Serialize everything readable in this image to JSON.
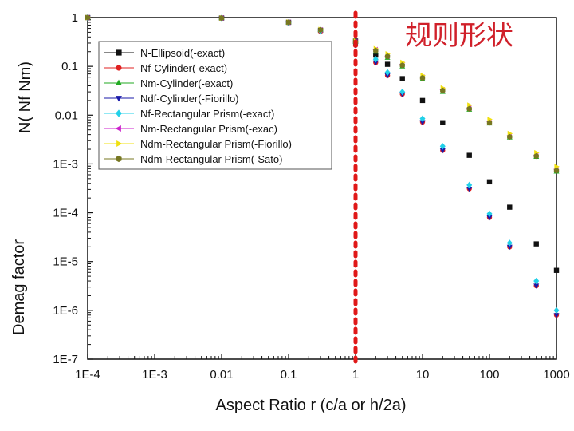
{
  "overlay_title": "规则形状",
  "chart_data": {
    "type": "scatter",
    "xscale": "log",
    "yscale": "log",
    "xlim": [
      0.0001,
      1000
    ],
    "ylim": [
      1e-07,
      1
    ],
    "x_tick_labels": [
      "1E-4",
      "1E-3",
      "0.01",
      "0.1",
      "1",
      "10",
      "100",
      "1000"
    ],
    "y_tick_labels": [
      "1",
      "0.1",
      "0.01",
      "1E-3",
      "1E-4",
      "1E-5",
      "1E-6",
      "1E-7"
    ],
    "xlabel": "Aspect Ratio r (c/a or h/2a)",
    "ylabel": "N( Nf Nm)",
    "ylabel_overprint": "Demag factor",
    "reference_line_x": 1,
    "legend_position": "upper-middle",
    "series": [
      {
        "name": "N-Ellipsoid(-exact)",
        "color": "#111111",
        "marker": "square",
        "x": [
          0.0001,
          0.01,
          0.1,
          0.3,
          1,
          2,
          3,
          5,
          10,
          20,
          50,
          100,
          200,
          500,
          1000
        ],
        "y": [
          1,
          0.98,
          0.8,
          0.55,
          0.33,
          0.17,
          0.11,
          0.056,
          0.02,
          0.007,
          0.0015,
          0.00043,
          0.00013,
          2.3e-05,
          6.6e-06
        ]
      },
      {
        "name": "Nf-Cylinder(-exact)",
        "color": "#e02020",
        "marker": "circle",
        "x": [
          0.0001,
          0.01,
          0.1,
          0.3,
          1,
          2,
          3,
          5,
          10,
          20,
          50,
          100,
          200,
          500,
          1000
        ],
        "y": [
          1,
          0.98,
          0.78,
          0.52,
          0.27,
          0.12,
          0.065,
          0.027,
          0.0072,
          0.0019,
          0.00031,
          8e-05,
          2e-05,
          3.2e-06,
          8e-07
        ]
      },
      {
        "name": "Nm-Cylinder(-exact)",
        "color": "#22aa22",
        "marker": "triangle-up",
        "x": [
          0.0001,
          0.01,
          0.1,
          0.3,
          1,
          2,
          3,
          5,
          10,
          20,
          50,
          100,
          200,
          500,
          1000
        ],
        "y": [
          1,
          0.98,
          0.8,
          0.56,
          0.3,
          0.2,
          0.15,
          0.1,
          0.055,
          0.03,
          0.013,
          0.0068,
          0.0035,
          0.0014,
          0.0007
        ]
      },
      {
        "name": "Ndf-Cylinder(-Fiorillo)",
        "color": "#1a1aaa",
        "marker": "triangle-down",
        "x": [
          0.0001,
          0.01,
          0.1,
          0.3,
          1,
          2,
          3,
          5,
          10,
          20,
          50,
          100,
          200,
          500,
          1000
        ],
        "y": [
          1,
          0.98,
          0.78,
          0.52,
          0.27,
          0.12,
          0.065,
          0.027,
          0.0072,
          0.0019,
          0.00031,
          8e-05,
          2e-05,
          3.2e-06,
          8e-07
        ]
      },
      {
        "name": "Nf-Rectangular Prism(-exact)",
        "color": "#22d0e8",
        "marker": "diamond",
        "x": [
          0.0001,
          0.01,
          0.1,
          0.3,
          1,
          2,
          3,
          5,
          10,
          20,
          50,
          100,
          200,
          500,
          1000
        ],
        "y": [
          1,
          0.98,
          0.78,
          0.53,
          0.3,
          0.14,
          0.075,
          0.03,
          0.0085,
          0.0023,
          0.00037,
          9.5e-05,
          2.4e-05,
          4e-06,
          1e-06
        ]
      },
      {
        "name": "Nm-Rectangular Prism(-exac)",
        "color": "#cc22cc",
        "marker": "triangle-left",
        "x": [
          0.0001,
          0.01,
          0.1,
          0.3,
          1,
          2,
          3,
          5,
          10,
          20,
          50,
          100,
          200,
          500,
          1000
        ],
        "y": [
          1,
          0.98,
          0.8,
          0.56,
          0.32,
          0.22,
          0.16,
          0.11,
          0.06,
          0.033,
          0.014,
          0.0073,
          0.0038,
          0.0015,
          0.00078
        ]
      },
      {
        "name": "Ndm-Rectangular Prism(-Fiorillo)",
        "color": "#f0e010",
        "marker": "triangle-right",
        "x": [
          0.0001,
          0.01,
          0.1,
          0.3,
          1,
          2,
          3,
          5,
          10,
          20,
          50,
          100,
          200,
          500,
          1000
        ],
        "y": [
          1,
          0.98,
          0.81,
          0.57,
          0.33,
          0.23,
          0.18,
          0.12,
          0.065,
          0.036,
          0.016,
          0.0082,
          0.0042,
          0.0017,
          0.00088
        ]
      },
      {
        "name": "Ndm-Rectangular Prism(-Sato)",
        "color": "#777722",
        "marker": "hexagon",
        "x": [
          0.0001,
          0.01,
          0.1,
          0.3,
          1,
          2,
          3,
          5,
          10,
          20,
          50,
          100,
          200,
          500,
          1000
        ],
        "y": [
          1,
          0.98,
          0.8,
          0.56,
          0.31,
          0.21,
          0.16,
          0.105,
          0.058,
          0.032,
          0.0135,
          0.007,
          0.0036,
          0.00145,
          0.00073
        ]
      }
    ]
  }
}
